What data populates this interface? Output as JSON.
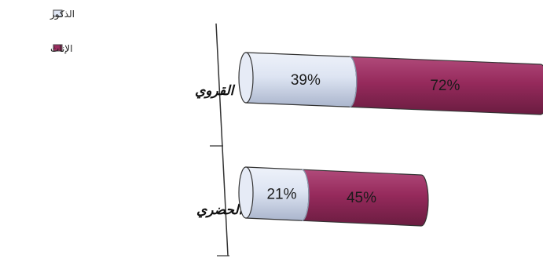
{
  "chart_data": {
    "type": "bar",
    "orientation": "horizontal",
    "stacked": true,
    "style": "3d-cylinder",
    "categories": [
      "القروي",
      "الحضري"
    ],
    "series": [
      {
        "name": "الذكور",
        "values": [
          39,
          21
        ],
        "labels": [
          "39%",
          "21%"
        ],
        "color": "#dfe6f4"
      },
      {
        "name": "الإناث",
        "values": [
          72,
          45
        ],
        "labels": [
          "72%",
          "45%"
        ],
        "color": "#9b2d5f"
      }
    ],
    "legend_position": "top-left",
    "grid": false
  }
}
